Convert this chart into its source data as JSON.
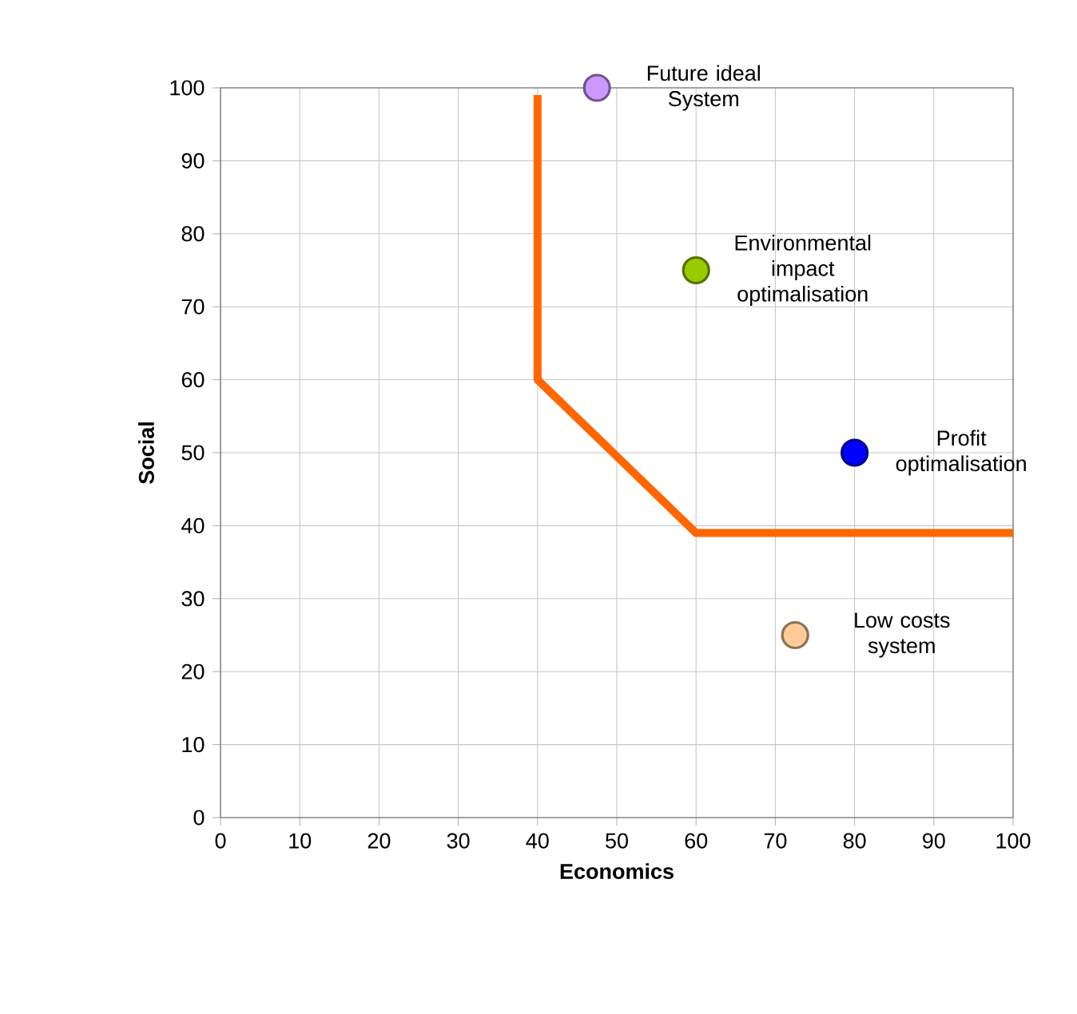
{
  "chart_data": {
    "type": "scatter",
    "xlabel": "Economics",
    "ylabel": "Social",
    "xlim": [
      0,
      100
    ],
    "ylim": [
      0,
      100
    ],
    "xticks": [
      0,
      10,
      20,
      30,
      40,
      50,
      60,
      70,
      80,
      90,
      100
    ],
    "yticks": [
      0,
      10,
      20,
      30,
      40,
      50,
      60,
      70,
      80,
      90,
      100
    ],
    "grid": true,
    "series": [
      {
        "type": "line",
        "marker": "none",
        "color": "#ff6600",
        "x": [
          40,
          40,
          60,
          100
        ],
        "values": [
          99,
          60,
          39,
          39
        ]
      },
      {
        "name": "Future ideal System",
        "marker": "circle",
        "color": "#cc99ff",
        "x": [
          47.5
        ],
        "values": [
          100
        ]
      },
      {
        "name": "Environmental impact optimalisation",
        "marker": "circle",
        "color": "#99cc00",
        "x": [
          60
        ],
        "values": [
          75
        ]
      },
      {
        "name": "Profit optimalisation",
        "marker": "circle",
        "color": "#0000ff",
        "x": [
          80
        ],
        "values": [
          50
        ]
      },
      {
        "name": "Low costs system",
        "marker": "circle",
        "color": "#ffcc99",
        "x": [
          72.5
        ],
        "values": [
          25
        ]
      }
    ]
  }
}
